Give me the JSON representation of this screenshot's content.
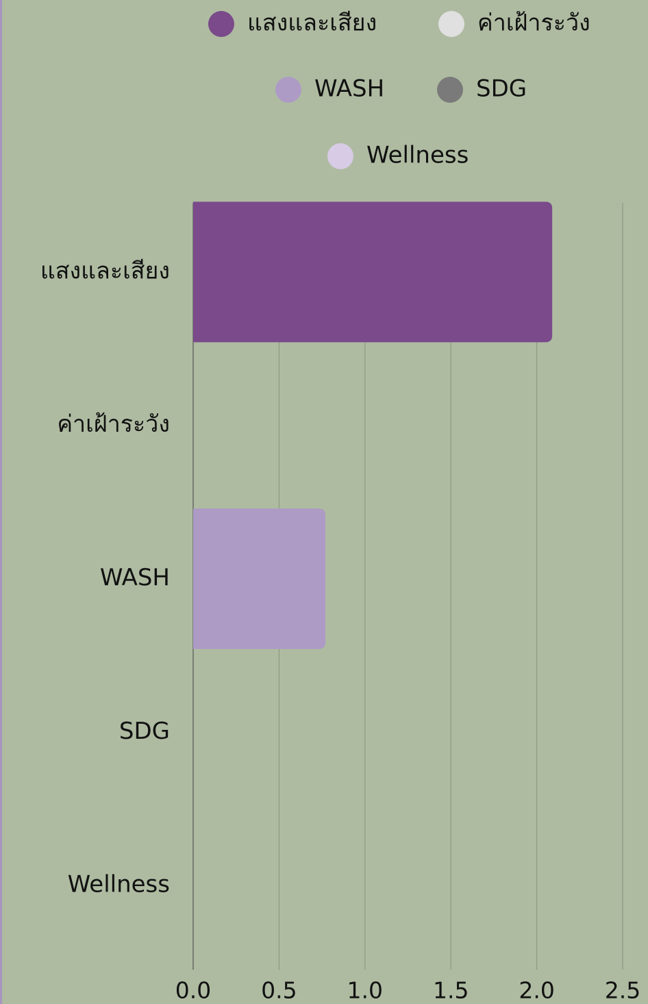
{
  "chart_data": {
    "type": "bar",
    "orientation": "horizontal",
    "categories": [
      "แสงและเสียง",
      "ค่าเฝ้าระวัง",
      "WASH",
      "SDG",
      "Wellness"
    ],
    "values": [
      2.09,
      0,
      0.77,
      0,
      0
    ],
    "colors": [
      "#7a4a8a",
      "#e0e0e0",
      "#ad9bc6",
      "#7a7a7a",
      "#d8cbe6"
    ],
    "xlim": [
      0,
      2.5
    ],
    "xticks": [
      {
        "value": 0,
        "label": "0.0"
      },
      0.5,
      {
        "value": 1,
        "label": "1.0"
      },
      1.5,
      {
        "value": 2,
        "label": "2.0"
      },
      2.5
    ],
    "grid": true,
    "legend": "top"
  }
}
